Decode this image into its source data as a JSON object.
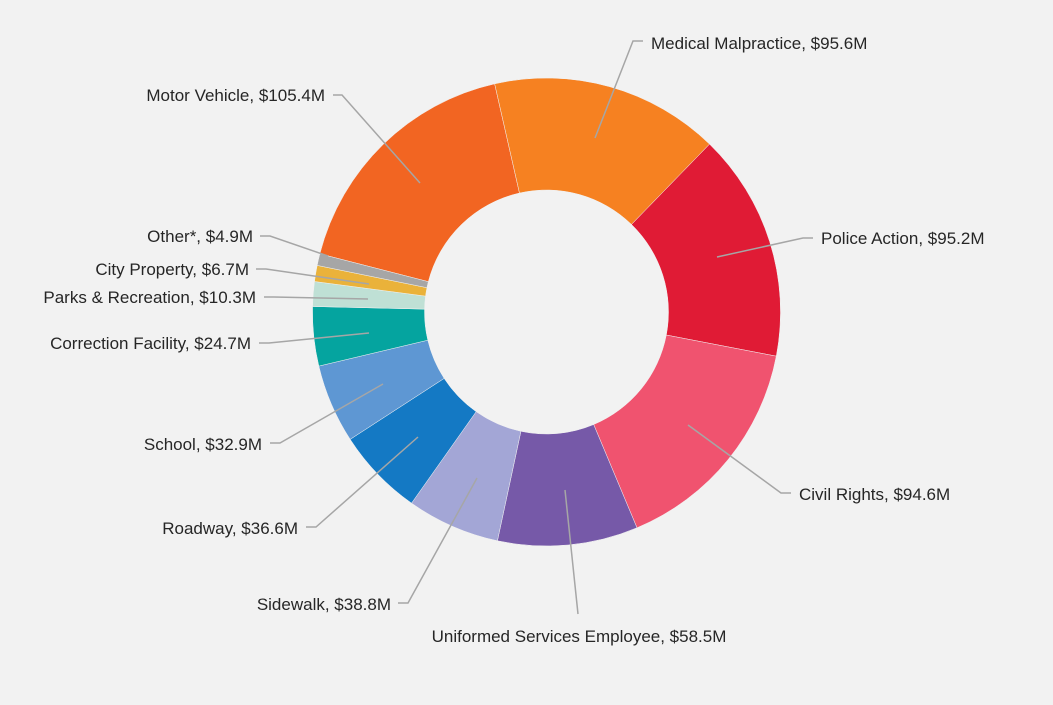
{
  "chart_data": {
    "type": "pie",
    "variant": "donut",
    "title": "",
    "label_format": "{name},  {value}",
    "categories": [
      "Motor Vehicle",
      "Medical Malpractice",
      "Police Action",
      "Civil Rights",
      "Uniformed Services Employee",
      "Sidewalk",
      "Roadway",
      "School",
      "Correction Facility",
      "Parks & Recreation",
      "City Property",
      "Other*"
    ],
    "values": [
      105.4,
      95.6,
      95.2,
      94.6,
      58.5,
      38.8,
      36.6,
      32.9,
      24.7,
      10.3,
      6.7,
      4.9
    ],
    "value_labels": [
      "$105.4M",
      "$95.6M",
      "$95.2M",
      "$94.6M",
      "$58.5M",
      "$38.8M",
      "$36.6M",
      "$32.9M",
      "$24.7M",
      "$10.3M",
      "$6.7M",
      "$4.9M"
    ],
    "unit": "$M",
    "colors": [
      "#F26522",
      "#F68121",
      "#E01B35",
      "#F0536F",
      "#7659A8",
      "#A3A6D6",
      "#1479C4",
      "#5E97D3",
      "#05A49F",
      "#BFE0D5",
      "#EAB23A",
      "#A6A6A6"
    ],
    "legend": "none",
    "background": "#F2F2F2",
    "leader_line_color": "#A6A6A6"
  }
}
